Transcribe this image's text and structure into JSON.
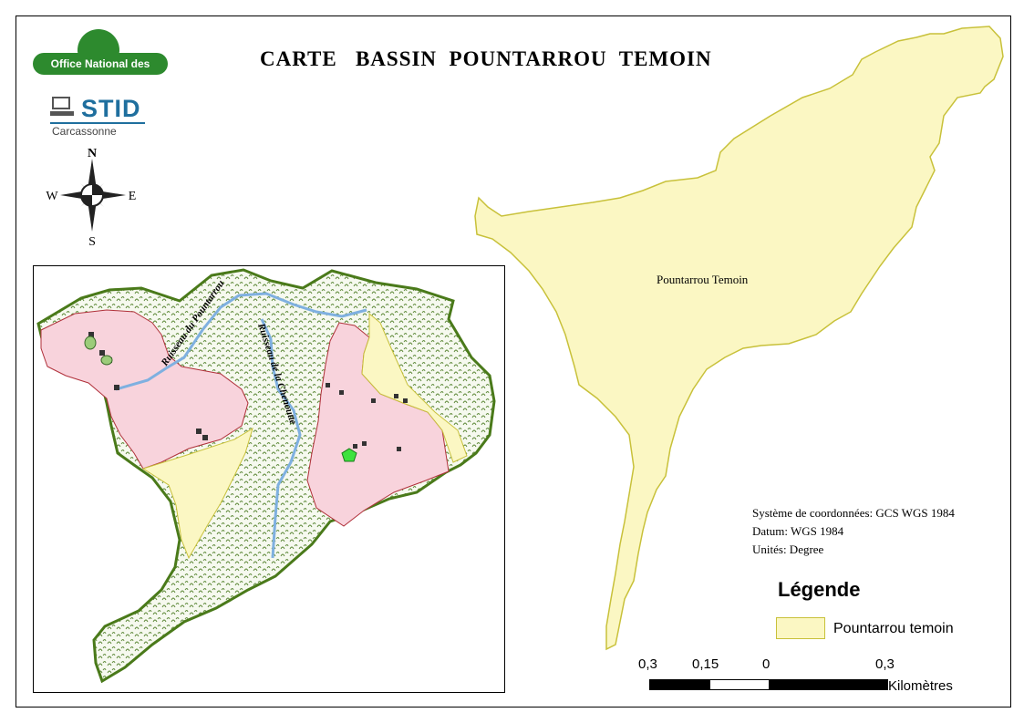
{
  "title": "CARTE   BASSIN  POUNTARROU  TEMOIN",
  "logos": {
    "onf": "Office National des Forêts",
    "stid": "STID",
    "stid_sub": "Carcassonne"
  },
  "compass": {
    "n": "N",
    "s": "S",
    "e": "E",
    "w": "W"
  },
  "inset": {
    "stream_1": "Ruisseau du Pountarrou",
    "stream_2": "Ruisseau de la Chenoutte"
  },
  "main_map": {
    "basin_label": "Pountarrou Temoin"
  },
  "coordinate_info": {
    "system": "Système de coordonnées: GCS WGS 1984",
    "datum": "Datum: WGS 1984",
    "units": "Unités: Degree"
  },
  "legend": {
    "title": "Légende",
    "items": [
      {
        "label": "Pountarrou temoin",
        "color": "#fbf7c3",
        "stroke": "#c8c13a"
      }
    ]
  },
  "scale_bar": {
    "labels": [
      "0,3",
      "0,15",
      "0",
      "0,3"
    ],
    "unit": "Kilomètres"
  },
  "colors": {
    "basin_fill": "#fbf7c3",
    "basin_stroke": "#c8c13a",
    "forest_stroke": "#4a7a1a",
    "cut_fill": "#f8d3dc",
    "cut_stroke": "#b0303a",
    "stream": "#7fb0e0"
  }
}
